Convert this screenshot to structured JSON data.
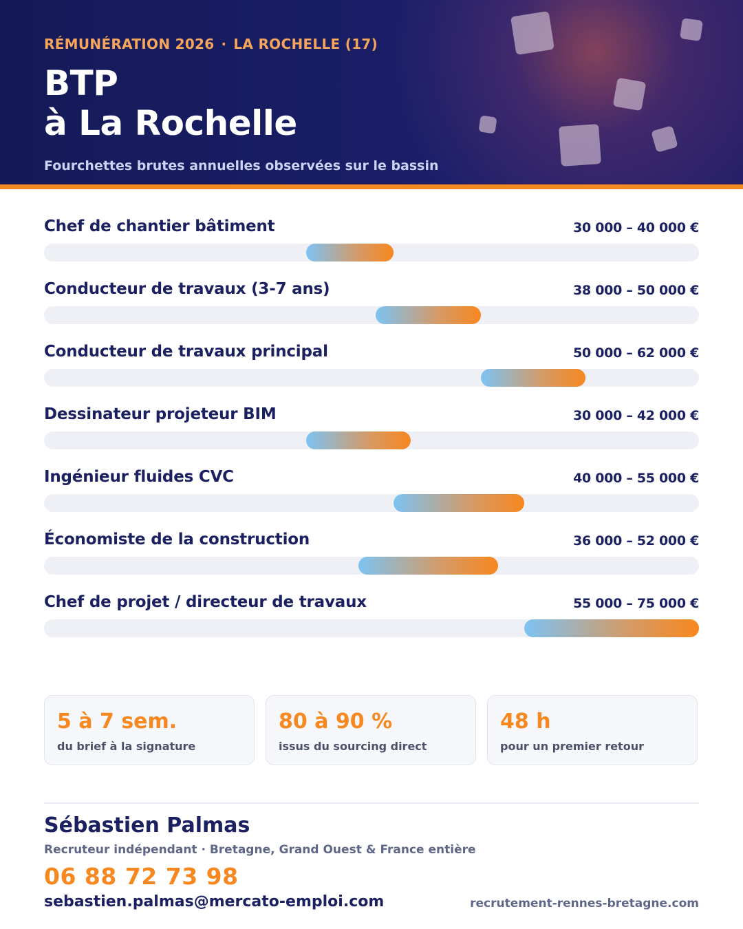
{
  "header": {
    "eyebrow_left": "RÉMUNÉRATION 2026",
    "eyebrow_sep": "·",
    "eyebrow_right": "LA ROCHELLE (17)",
    "title_line1": "BTP",
    "title_line2": "à La Rochelle",
    "subtitle": "Fourchettes brutes annuelles observées sur le bassin"
  },
  "chart_data": {
    "type": "bar",
    "orientation": "horizontal-range",
    "xlim": [
      0,
      75000
    ],
    "grid": false,
    "legend": "none",
    "colors": {
      "bar_start": "#7cc3f3",
      "bar_end": "#f7871f",
      "track": "#eef0f6"
    },
    "rows": [
      {
        "label": "Chef de chantier bâtiment",
        "min": 30000,
        "max": 40000,
        "range_text": "30 000 – 40 000 €"
      },
      {
        "label": "Conducteur de travaux (3-7 ans)",
        "min": 38000,
        "max": 50000,
        "range_text": "38 000 – 50 000 €"
      },
      {
        "label": "Conducteur de travaux principal",
        "min": 50000,
        "max": 62000,
        "range_text": "50 000 – 62 000 €"
      },
      {
        "label": "Dessinateur projeteur BIM",
        "min": 30000,
        "max": 42000,
        "range_text": "30 000 – 42 000 €"
      },
      {
        "label": "Ingénieur fluides CVC",
        "min": 40000,
        "max": 55000,
        "range_text": "40 000 – 55 000 €"
      },
      {
        "label": "Économiste de la construction",
        "min": 36000,
        "max": 52000,
        "range_text": "36 000 – 52 000 €"
      },
      {
        "label": "Chef de projet / directeur de travaux",
        "min": 55000,
        "max": 75000,
        "range_text": "55 000 – 75 000 €"
      }
    ]
  },
  "stats": [
    {
      "value": "5 à 7 sem.",
      "label": "du brief à la signature"
    },
    {
      "value": "80 à 90 %",
      "label": "issus du sourcing direct"
    },
    {
      "value": "48 h",
      "label": "pour un premier retour"
    }
  ],
  "contact": {
    "name": "Sébastien Palmas",
    "role": "Recruteur indépendant · Bretagne, Grand Ouest & France entière",
    "phone": "06 88 72 73 98",
    "email": "sebastien.palmas@mercato-emploi.com",
    "website": "recrutement-rennes-bretagne.com"
  },
  "colors": {
    "navy": "#1b2160",
    "accent": "#f7871f",
    "eyebrow": "#f6a55a"
  }
}
